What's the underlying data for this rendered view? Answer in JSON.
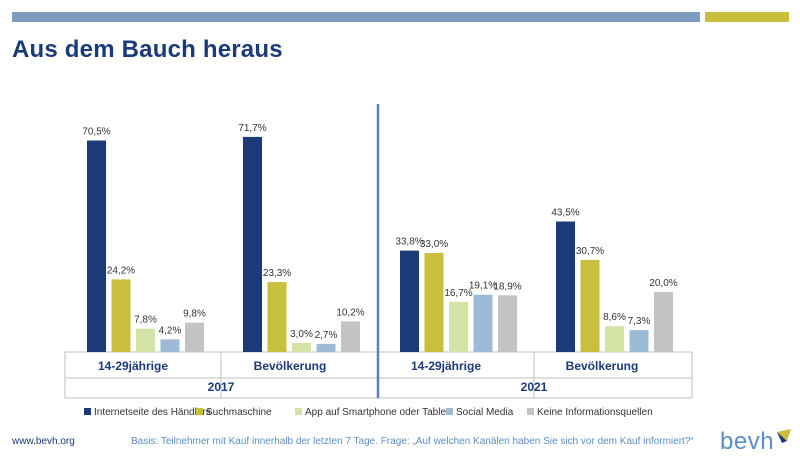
{
  "title": "Aus dem Bauch heraus",
  "colors": {
    "topbar_left": "#7e9cbf",
    "topbar_right": "#c9bf3e",
    "series": [
      "#1b3a78",
      "#c9bf3e",
      "#d4e3a5",
      "#9dbbd6",
      "#c3c3c3"
    ],
    "divider": "#5b7fc4"
  },
  "chart_data": {
    "type": "bar",
    "ylim": [
      0,
      80
    ],
    "grid": false,
    "legend_position": "bottom",
    "groups": [
      {
        "year": "2017",
        "categories": [
          "14-29jährige",
          "Bevölkerung"
        ]
      },
      {
        "year": "2021",
        "categories": [
          "14-29jährige",
          "Bevölkerung"
        ]
      }
    ],
    "series": [
      {
        "name": "Internetseite des Händlers",
        "values": [
          70.5,
          71.7,
          33.8,
          43.5
        ],
        "labels": [
          "70,5%",
          "71,7%",
          "33,8%",
          "43,5%"
        ]
      },
      {
        "name": "Suchmaschine",
        "values": [
          24.2,
          23.3,
          33.0,
          30.7
        ],
        "labels": [
          "24,2%",
          "23,3%",
          "33,0%",
          "30,7%"
        ]
      },
      {
        "name": "App auf Smartphone oder Tablet",
        "values": [
          7.8,
          3.0,
          16.7,
          8.6
        ],
        "labels": [
          "7,8%",
          "3,0%",
          "16,7%",
          "8,6%"
        ]
      },
      {
        "name": "Social Media",
        "values": [
          4.2,
          2.7,
          19.1,
          7.3
        ],
        "labels": [
          "4,2%",
          "2,7%",
          "19,1%",
          "7,3%"
        ]
      },
      {
        "name": "Keine Informationsquellen",
        "values": [
          9.8,
          10.2,
          18.9,
          20.0
        ],
        "labels": [
          "9,8%",
          "10,2%",
          "18,9%",
          "20,0%"
        ]
      }
    ]
  },
  "footer": {
    "url": "www.bevh.org",
    "note": "Basis: Teilnehmer mit Kauf innerhalb der letzten 7 Tage. Frage: „Auf welchen Kanälen haben Sie sich vor dem Kauf informiert?“"
  },
  "logo": {
    "text": "bevh"
  }
}
